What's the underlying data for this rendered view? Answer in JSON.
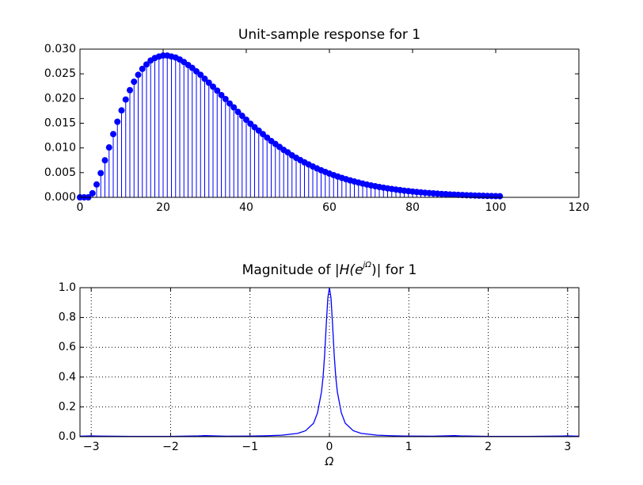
{
  "chart_data": [
    {
      "type": "stem",
      "title": "Unit-sample response for 1",
      "color": "#0000ff",
      "x": [
        0,
        1,
        2,
        3,
        4,
        5,
        6,
        7,
        8,
        9,
        10,
        11,
        12,
        13,
        14,
        15,
        16,
        17,
        18,
        19,
        20,
        21,
        22,
        23,
        24,
        25,
        26,
        27,
        28,
        29,
        30,
        31,
        32,
        33,
        34,
        35,
        36,
        37,
        38,
        39,
        40,
        41,
        42,
        43,
        44,
        45,
        46,
        47,
        48,
        49,
        50,
        51,
        52,
        53,
        54,
        55,
        56,
        57,
        58,
        59,
        60,
        61,
        62,
        63,
        64,
        65,
        66,
        67,
        68,
        69,
        70,
        71,
        72,
        73,
        74,
        75,
        76,
        77,
        78,
        79,
        80,
        81,
        82,
        83,
        84,
        85,
        86,
        87,
        88,
        89,
        90,
        91,
        92,
        93,
        94,
        95,
        96,
        97,
        98,
        99,
        100,
        101
      ],
      "values": [
        0,
        0,
        0,
        0.00083,
        0.0026,
        0.0049,
        0.0075,
        0.0101,
        0.0128,
        0.0153,
        0.0176,
        0.0198,
        0.0217,
        0.0234,
        0.0248,
        0.026,
        0.0269,
        0.0277,
        0.0282,
        0.0285,
        0.0287,
        0.0287,
        0.0285,
        0.0283,
        0.0279,
        0.0274,
        0.0268,
        0.0262,
        0.0255,
        0.0248,
        0.024,
        0.0232,
        0.0224,
        0.0216,
        0.0207,
        0.0199,
        0.019,
        0.0182,
        0.0173,
        0.0165,
        0.0157,
        0.0149,
        0.0142,
        0.0135,
        0.0128,
        0.0121,
        0.0114,
        0.0108,
        0.0102,
        0.0096,
        0.0091,
        0.0085,
        0.008,
        0.00754,
        0.00708,
        0.00665,
        0.00624,
        0.00585,
        0.00548,
        0.00514,
        0.00481,
        0.0045,
        0.00421,
        0.00393,
        0.00367,
        0.00343,
        0.0032,
        0.00298,
        0.00278,
        0.00259,
        0.00241,
        0.00225,
        0.00209,
        0.00195,
        0.00181,
        0.00169,
        0.00157,
        0.00146,
        0.00135,
        0.00126,
        0.00117,
        0.00108,
        0.00101,
        0.00093,
        0.00087,
        0.0008,
        0.00074,
        0.00069,
        0.00064,
        0.00059,
        0.00055,
        0.00051,
        0.00047,
        0.00043,
        0.0004,
        0.00037,
        0.00034,
        0.00032,
        0.00029,
        0.00027,
        0.00025,
        0.00023
      ],
      "xlim": [
        0,
        120
      ],
      "xticks": [
        0,
        20,
        40,
        60,
        80,
        100,
        120
      ],
      "ylim": [
        0,
        0.03
      ],
      "yticks": [
        {
          "value": 0,
          "label": "0.000"
        },
        {
          "value": 0.005,
          "label": "0.005"
        },
        {
          "value": 0.01,
          "label": "0.010"
        },
        {
          "value": 0.015,
          "label": "0.015"
        },
        {
          "value": 0.02,
          "label": "0.020"
        },
        {
          "value": 0.025,
          "label": "0.025"
        },
        {
          "value": 0.03,
          "label": "0.030"
        }
      ],
      "grid": false
    },
    {
      "type": "line",
      "title_parts": [
        "Magnitude of ",
        "|H(e",
        "jΩ",
        ")|",
        " for 1"
      ],
      "xlabel": "Ω",
      "color": "#0000ff",
      "x": [
        -3.14,
        -3.0,
        -2.9,
        -2.5,
        -2.0,
        -1.65,
        -1.57,
        -1.5,
        -1.3,
        -1.0,
        -0.8,
        -0.6,
        -0.4,
        -0.3,
        -0.2,
        -0.15,
        -0.1,
        -0.08,
        -0.06,
        -0.04,
        -0.02,
        0,
        0.02,
        0.04,
        0.06,
        0.08,
        0.1,
        0.15,
        0.2,
        0.3,
        0.4,
        0.6,
        0.8,
        1.0,
        1.3,
        1.5,
        1.57,
        1.65,
        2.0,
        2.5,
        2.9,
        3.0,
        3.14
      ],
      "values": [
        0.003,
        0.005,
        0.004,
        0.002,
        0.002,
        0.005,
        0.007,
        0.006,
        0.003,
        0.004,
        0.006,
        0.01,
        0.022,
        0.04,
        0.09,
        0.16,
        0.3,
        0.4,
        0.55,
        0.75,
        0.93,
        1.0,
        0.93,
        0.75,
        0.55,
        0.4,
        0.3,
        0.16,
        0.09,
        0.04,
        0.022,
        0.01,
        0.006,
        0.004,
        0.003,
        0.006,
        0.007,
        0.005,
        0.002,
        0.002,
        0.004,
        0.005,
        0.003
      ],
      "xlim": [
        -3.14159,
        3.14159
      ],
      "xticks": [
        {
          "value": -3,
          "label": "−3"
        },
        {
          "value": -2,
          "label": "−2"
        },
        {
          "value": -1,
          "label": "−1"
        },
        0,
        1,
        2,
        3
      ],
      "ylim": [
        0,
        1
      ],
      "yticks": [
        {
          "value": 0,
          "label": "0.0"
        },
        0.2,
        0.4,
        0.6,
        0.8,
        {
          "value": 1,
          "label": "1.0"
        }
      ],
      "grid": true
    }
  ]
}
